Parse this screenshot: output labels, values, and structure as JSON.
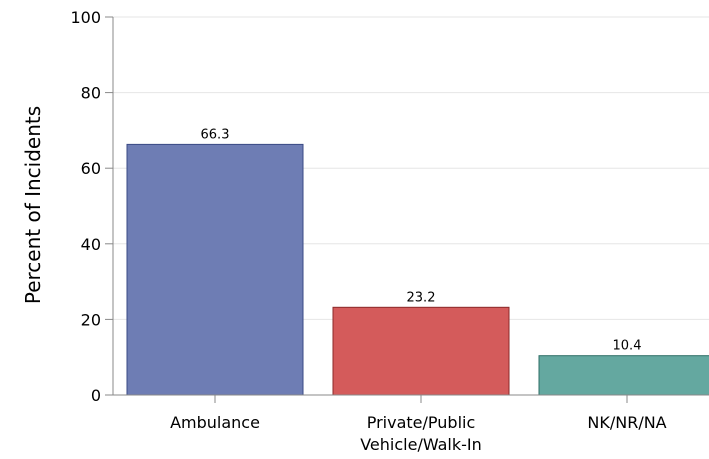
{
  "chart_data": {
    "type": "bar",
    "categories": [
      "Ambulance",
      "Private/Public Vehicle/Walk-In",
      "NK/NR/NA"
    ],
    "category_label_lines": [
      [
        "Ambulance"
      ],
      [
        "Private/Public",
        "Vehicle/Walk-In"
      ],
      [
        "NK/NR/NA"
      ]
    ],
    "values": [
      66.3,
      23.2,
      10.4
    ],
    "data_labels": [
      "66.3",
      "23.2",
      "10.4"
    ],
    "colors": [
      "#6e7db4",
      "#d45b5b",
      "#64a8a0"
    ],
    "edge_colors": [
      "#3a4a85",
      "#8b2a2a",
      "#2e6e66"
    ],
    "title": "",
    "xlabel": "",
    "ylabel": "Percent of Incidents",
    "ylim": [
      0,
      100
    ],
    "yticks": [
      0,
      20,
      40,
      60,
      80,
      100
    ],
    "grid": true,
    "legend": "none"
  }
}
